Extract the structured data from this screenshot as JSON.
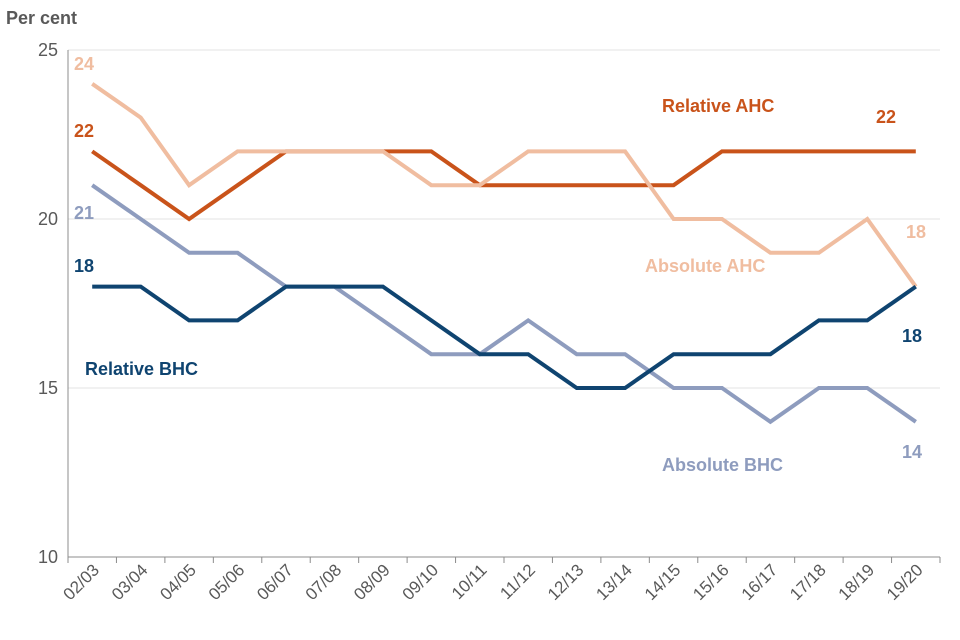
{
  "chart_data": {
    "type": "line",
    "ylabel": "Per cent",
    "ylim": [
      10,
      25
    ],
    "yticks": [
      10,
      15,
      20,
      25
    ],
    "grid": true,
    "categories": [
      "02/03",
      "03/04",
      "04/05",
      "05/06",
      "06/07",
      "07/08",
      "08/09",
      "09/10",
      "10/11",
      "11/12",
      "12/13",
      "13/14",
      "14/15",
      "15/16",
      "16/17",
      "17/18",
      "18/19",
      "19/20"
    ],
    "series": [
      {
        "key": "relative-ahc",
        "name": "Relative AHC",
        "color": "#C9531A",
        "values": [
          22,
          21,
          20,
          21,
          22,
          22,
          22,
          22,
          21,
          21,
          21,
          21,
          21,
          22,
          22,
          22,
          22,
          22
        ],
        "start_label": "22",
        "end_label": "22"
      },
      {
        "key": "absolute-ahc",
        "name": "Absolute AHC",
        "color": "#F0BDA0",
        "values": [
          24,
          23,
          21,
          22,
          22,
          22,
          22,
          21,
          21,
          22,
          22,
          22,
          20,
          20,
          19,
          19,
          20,
          18
        ],
        "start_label": "24",
        "end_label": "18"
      },
      {
        "key": "absolute-bhc",
        "name": "Absolute BHC",
        "color": "#8E9CBE",
        "values": [
          21,
          20,
          19,
          19,
          18,
          18,
          17,
          16,
          16,
          17,
          16,
          16,
          15,
          15,
          14,
          15,
          15,
          14
        ],
        "start_label": "21",
        "end_label": "14"
      },
      {
        "key": "relative-bhc",
        "name": "Relative BHC",
        "color": "#0F4470",
        "values": [
          18,
          18,
          17,
          17,
          18,
          18,
          18,
          17,
          16,
          16,
          15,
          15,
          16,
          16,
          16,
          17,
          17,
          18
        ],
        "start_label": "18",
        "end_label": "18"
      }
    ]
  }
}
